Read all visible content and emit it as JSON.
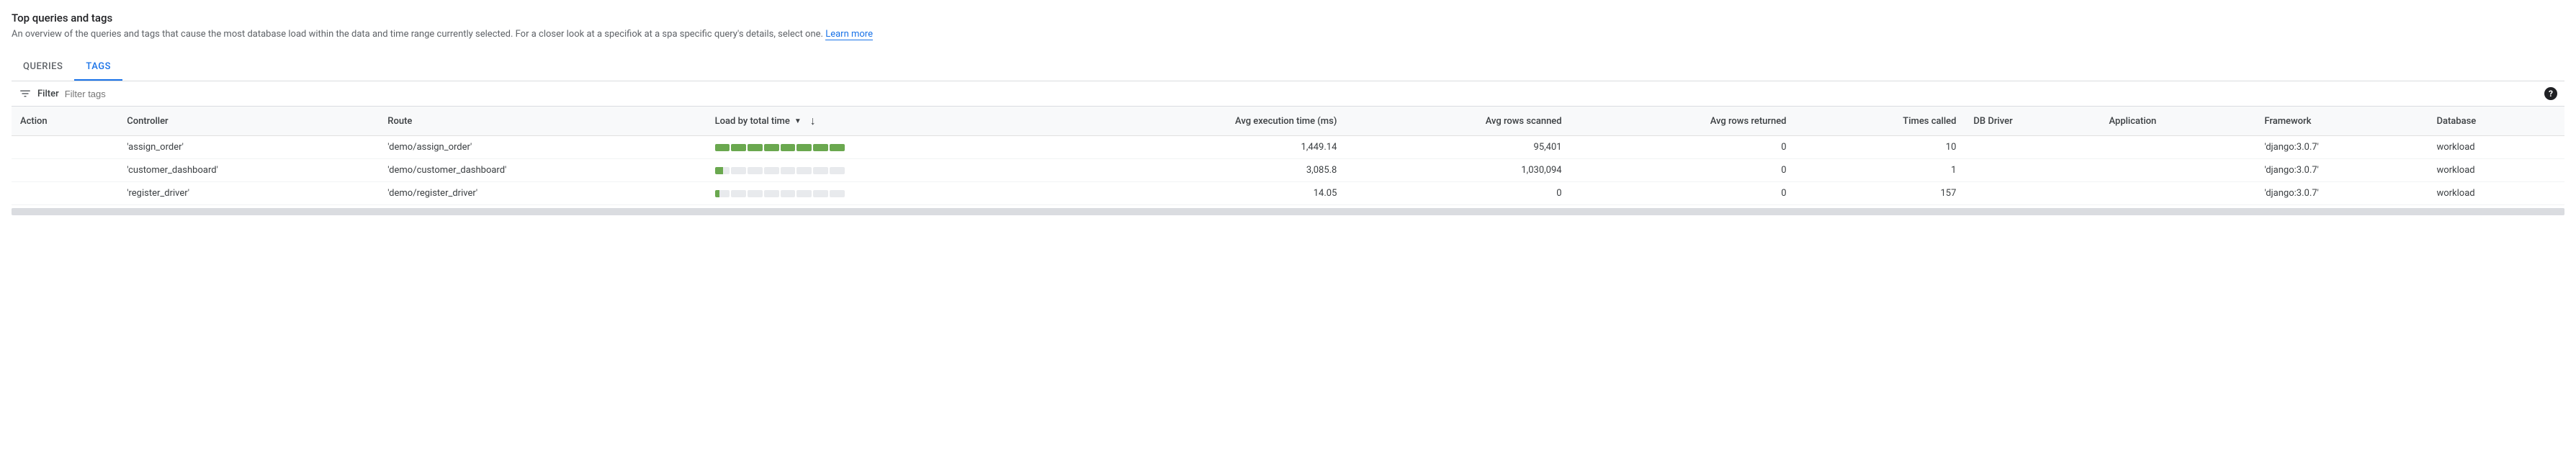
{
  "header": {
    "title": "Top queries and tags",
    "description_prefix": "An overview of the queries and tags that cause the most database load within the data and time range currently selected. For a closer look at a specifiok at a spa specific query's details, select one. ",
    "learn_more": "Learn more"
  },
  "tabs": {
    "queries": "QUERIES",
    "tags": "TAGS",
    "active": "tags"
  },
  "filter": {
    "label": "Filter",
    "placeholder": "Filter tags"
  },
  "columns": {
    "action": "Action",
    "controller": "Controller",
    "route": "Route",
    "load": "Load by total time",
    "avg_exec": "Avg execution time (ms)",
    "avg_scanned": "Avg rows scanned",
    "avg_returned": "Avg rows returned",
    "times_called": "Times called",
    "db_driver": "DB Driver",
    "application": "Application",
    "framework": "Framework",
    "database": "Database"
  },
  "sort": {
    "column": "load",
    "direction": "desc"
  },
  "load_bar": {
    "segments": 8,
    "fill_color": "#6aa84f",
    "empty_color": "#e8eaed"
  },
  "rows": [
    {
      "controller": "'assign_order'",
      "route": "'demo/assign_order'",
      "load_filled_segments": 8,
      "load_last_partial_pct": 100,
      "avg_exec": "1,449.14",
      "avg_scanned": "95,401",
      "avg_returned": "0",
      "times_called": "10",
      "db_driver": "",
      "application": "",
      "framework": "'django:3.0.7'",
      "database": "workload"
    },
    {
      "controller": "'customer_dashboard'",
      "route": "'demo/customer_dashboard'",
      "load_filled_segments": 1,
      "load_last_partial_pct": 55,
      "avg_exec": "3,085.8",
      "avg_scanned": "1,030,094",
      "avg_returned": "0",
      "times_called": "1",
      "db_driver": "",
      "application": "",
      "framework": "'django:3.0.7'",
      "database": "workload"
    },
    {
      "controller": "'register_driver'",
      "route": "'demo/register_driver'",
      "load_filled_segments": 1,
      "load_last_partial_pct": 30,
      "avg_exec": "14.05",
      "avg_scanned": "0",
      "avg_returned": "0",
      "times_called": "157",
      "db_driver": "",
      "application": "",
      "framework": "'django:3.0.7'",
      "database": "workload"
    }
  ]
}
